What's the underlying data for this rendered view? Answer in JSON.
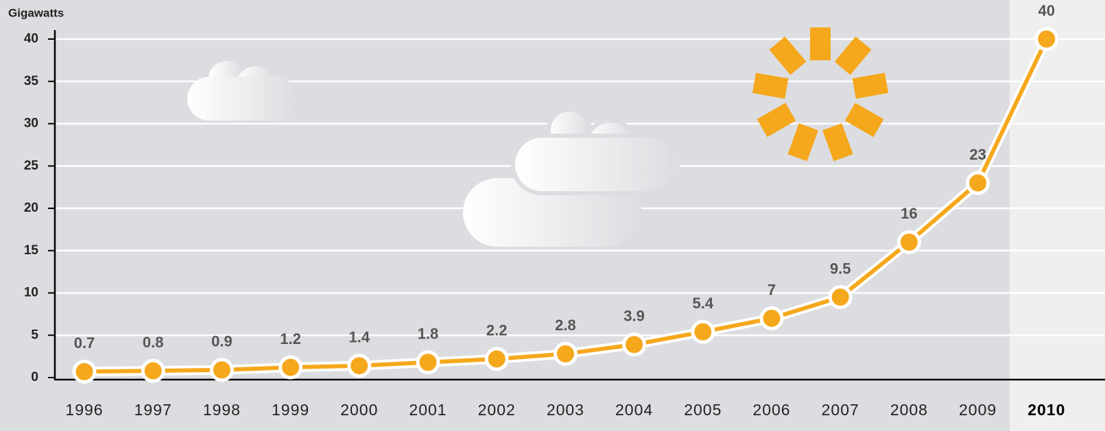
{
  "chart_data": {
    "type": "line",
    "y_label": "Gigawatts",
    "categories": [
      "1996",
      "1997",
      "1998",
      "1999",
      "2000",
      "2001",
      "2002",
      "2003",
      "2004",
      "2005",
      "2006",
      "2007",
      "2008",
      "2009",
      "2010"
    ],
    "values": [
      0.7,
      0.8,
      0.9,
      1.2,
      1.4,
      1.8,
      2.2,
      2.8,
      3.9,
      5.4,
      7,
      9.5,
      16,
      23,
      40
    ],
    "color": "#f5a81c",
    "ylim": [
      0,
      40
    ],
    "yticks": [
      0,
      5,
      10,
      15,
      20,
      25,
      30,
      35,
      40
    ],
    "grid": true
  }
}
